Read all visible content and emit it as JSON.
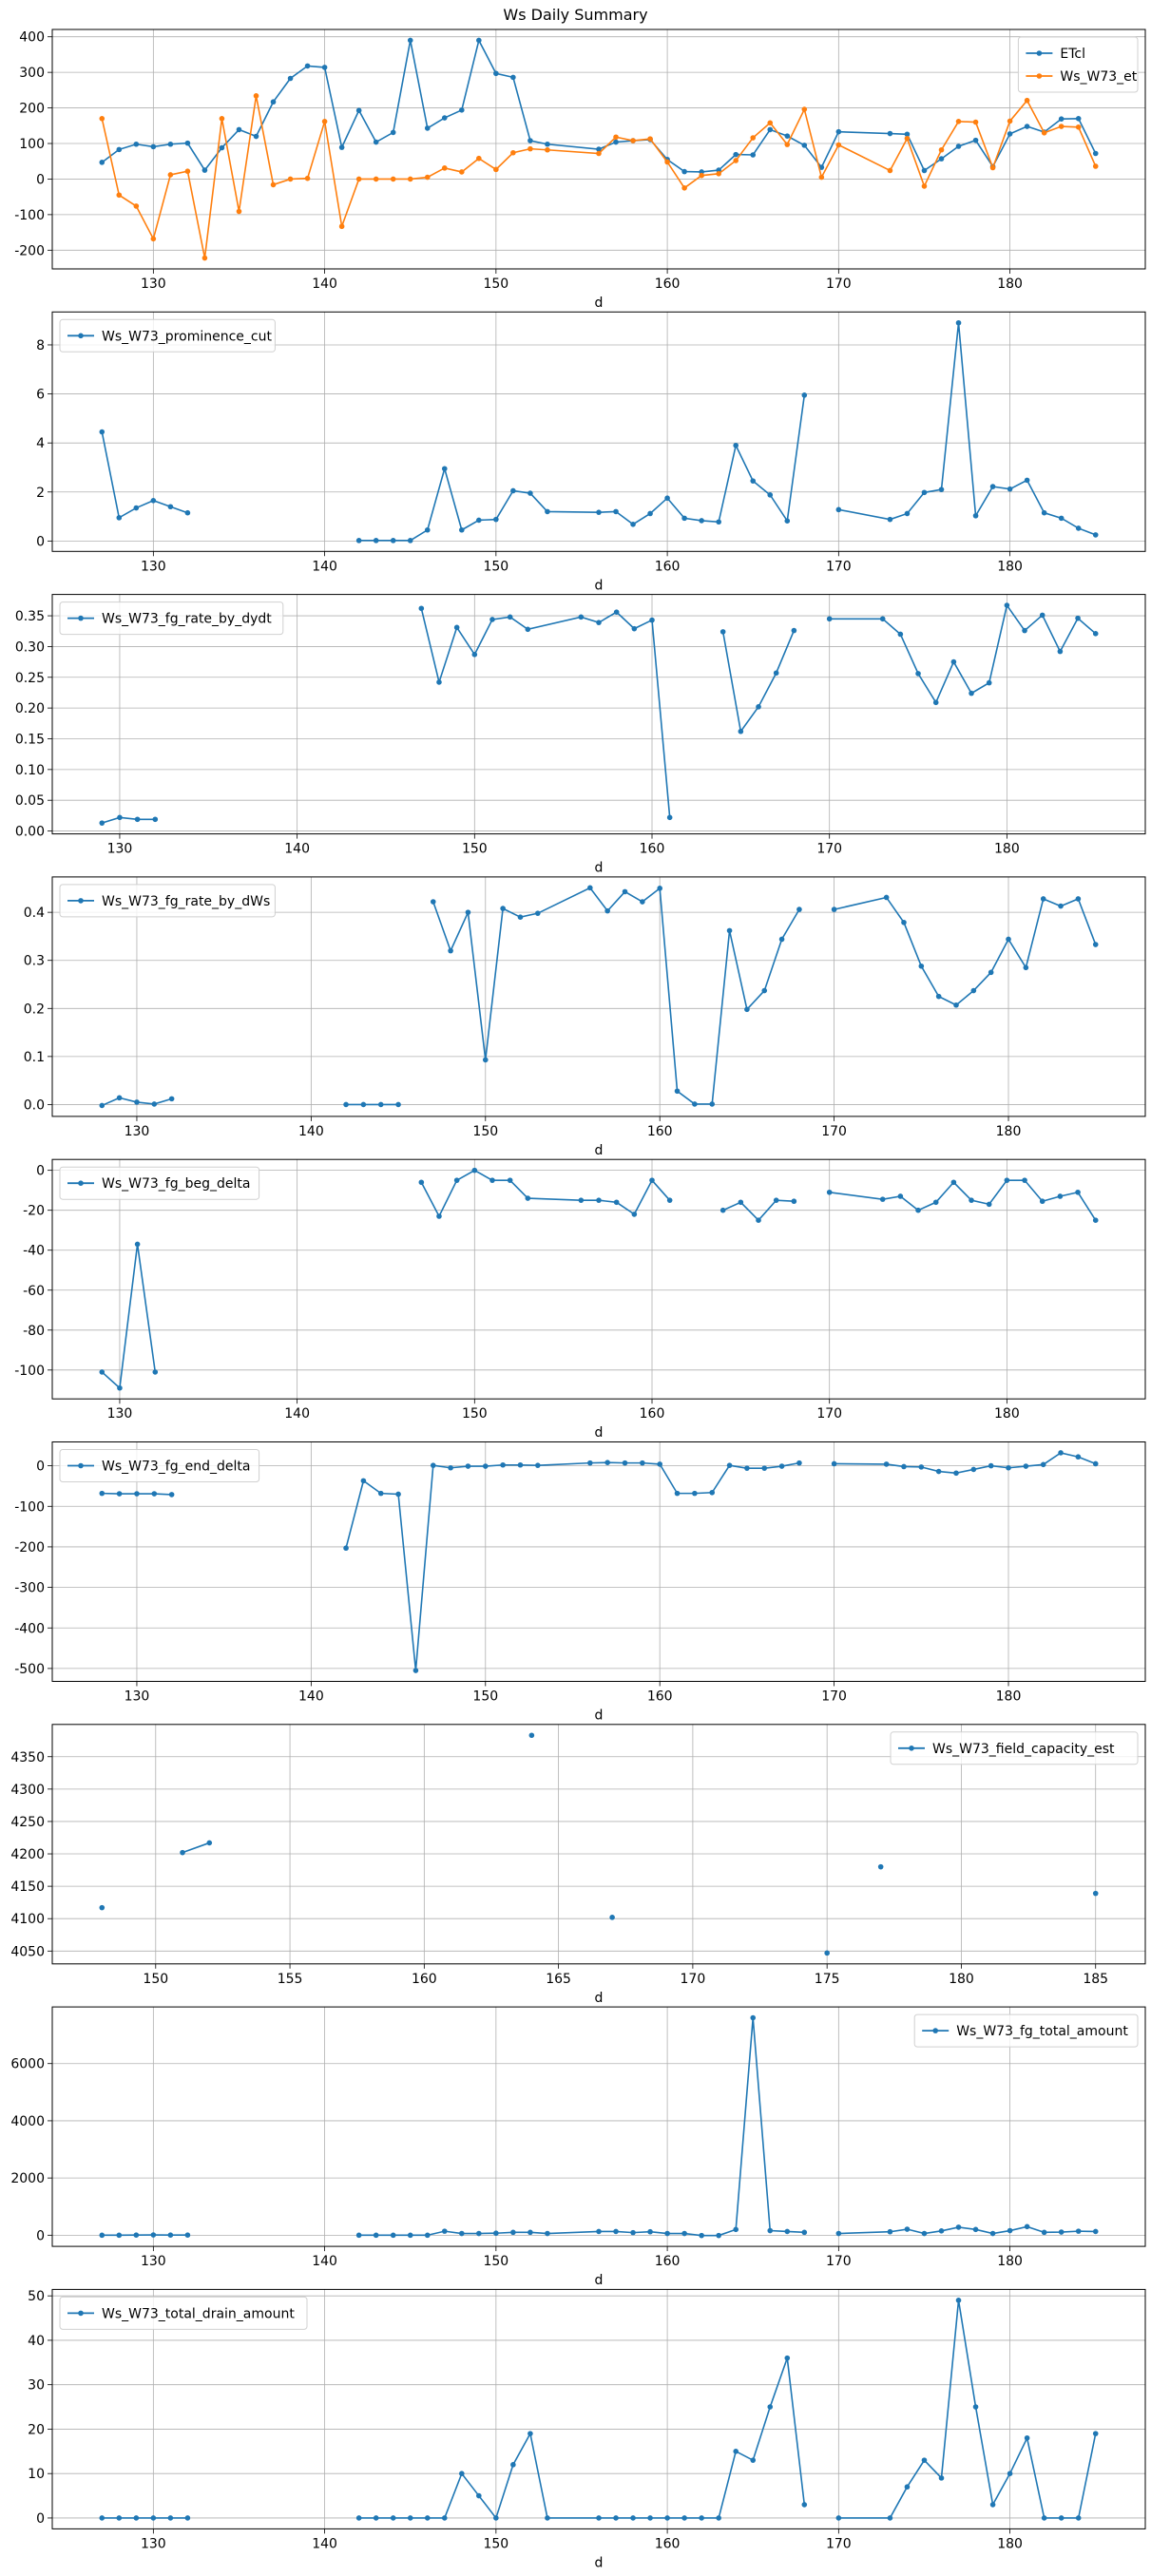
{
  "title": "Ws Daily Summary",
  "chart_data": [
    {
      "type": "line",
      "xlabel": "d",
      "legend": "upper-right",
      "grid": true,
      "xticks": [
        130,
        140,
        150,
        160,
        170,
        180
      ],
      "yticks": [
        -200,
        -100,
        0,
        100,
        200,
        300,
        400
      ],
      "x": [
        127,
        128,
        129,
        130,
        131,
        132,
        133,
        134,
        135,
        136,
        137,
        138,
        139,
        140,
        141,
        142,
        143,
        144,
        145,
        146,
        147,
        148,
        149,
        150,
        151,
        152,
        153,
        156,
        157,
        158,
        159,
        160,
        161,
        162,
        163,
        164,
        165,
        166,
        167,
        168,
        169,
        170,
        173,
        174,
        175,
        176,
        177,
        178,
        179,
        180,
        181,
        182,
        183,
        184,
        185
      ],
      "series": [
        {
          "name": "ETcl",
          "color": "#1f77b4",
          "values": [
            47,
            83,
            98,
            91,
            98,
            101,
            25,
            88,
            139,
            120,
            217,
            283,
            318,
            314,
            89,
            193,
            104,
            131,
            390,
            143,
            172,
            194,
            390,
            297,
            286,
            108,
            98,
            84,
            104,
            108,
            111,
            55,
            21,
            20,
            25,
            69,
            68,
            139,
            121,
            95,
            33,
            133,
            128,
            126,
            24,
            57,
            92,
            109,
            35,
            127,
            148,
            132,
            169,
            170,
            72
          ]
        },
        {
          "name": "Ws_W73_et",
          "color": "#ff7f0e",
          "values": [
            170,
            -45,
            -76,
            -168,
            12,
            22,
            -222,
            170,
            -91,
            234,
            -16,
            0,
            2,
            162,
            -133,
            0,
            0,
            0,
            0,
            5,
            31,
            20,
            58,
            27,
            74,
            85,
            82,
            72,
            118,
            108,
            113,
            48,
            -25,
            10,
            15,
            52,
            116,
            158,
            97,
            196,
            5,
            96,
            24,
            114,
            -20,
            82,
            162,
            160,
            32,
            163,
            221,
            130,
            148,
            146,
            36
          ]
        }
      ]
    },
    {
      "type": "line",
      "xlabel": "d",
      "legend": "upper-left",
      "grid": true,
      "xticks": [
        130,
        140,
        150,
        160,
        170,
        180
      ],
      "yticks": [
        0,
        2,
        4,
        6,
        8
      ],
      "x": [
        127,
        128,
        129,
        130,
        131,
        132,
        133,
        142,
        143,
        144,
        145,
        146,
        147,
        148,
        149,
        150,
        151,
        152,
        153,
        156,
        157,
        158,
        159,
        160,
        161,
        162,
        163,
        164,
        165,
        166,
        167,
        168,
        169,
        170,
        173,
        174,
        175,
        176,
        177,
        178,
        179,
        180,
        181,
        182,
        183,
        184,
        185
      ],
      "series": [
        {
          "name": "Ws_W73_prominence_cut",
          "color": "#1f77b4",
          "values": [
            4.45,
            0.95,
            1.35,
            1.65,
            1.4,
            1.15,
            null,
            0.02,
            0.02,
            0.02,
            0.02,
            0.45,
            2.95,
            0.45,
            0.85,
            0.88,
            2.05,
            1.95,
            1.2,
            1.17,
            1.2,
            0.68,
            1.12,
            1.75,
            0.93,
            0.83,
            0.78,
            3.9,
            2.45,
            1.88,
            0.82,
            5.95,
            null,
            1.28,
            0.88,
            1.12,
            1.98,
            2.1,
            8.9,
            1.03,
            2.22,
            2.12,
            2.48,
            1.15,
            0.93,
            0.52,
            0.25
          ]
        }
      ]
    },
    {
      "type": "line",
      "xlabel": "d",
      "legend": "upper-left",
      "grid": true,
      "xticks": [
        130,
        140,
        150,
        160,
        170,
        180
      ],
      "yticks": [
        0.0,
        0.05,
        0.1,
        0.15,
        0.2,
        0.25,
        0.3,
        0.35
      ],
      "ytick_decimals": 2,
      "x": [
        129,
        130,
        131,
        132,
        133,
        147,
        148,
        149,
        150,
        151,
        152,
        153,
        156,
        157,
        158,
        159,
        160,
        161,
        162,
        164,
        165,
        166,
        167,
        168,
        169,
        170,
        173,
        174,
        175,
        176,
        177,
        178,
        179,
        180,
        181,
        182,
        183,
        184,
        185
      ],
      "series": [
        {
          "name": "Ws_W73_fg_rate_by_dydt",
          "color": "#1f77b4",
          "values": [
            0.013,
            0.022,
            0.019,
            0.019,
            null,
            0.362,
            0.242,
            0.331,
            0.287,
            0.344,
            0.348,
            0.328,
            0.348,
            0.339,
            0.356,
            0.329,
            0.343,
            0.022,
            null,
            0.324,
            0.162,
            0.202,
            0.257,
            0.326,
            null,
            0.345,
            0.345,
            0.32,
            0.256,
            0.209,
            0.275,
            0.224,
            0.241,
            0.367,
            0.326,
            0.351,
            0.292,
            0.346,
            0.321
          ]
        }
      ]
    },
    {
      "type": "line",
      "xlabel": "d",
      "legend": "upper-left",
      "grid": true,
      "xticks": [
        130,
        140,
        150,
        160,
        170,
        180
      ],
      "yticks": [
        0.0,
        0.1,
        0.2,
        0.3,
        0.4
      ],
      "ytick_decimals": 1,
      "x": [
        128,
        129,
        130,
        131,
        132,
        133,
        142,
        143,
        144,
        145,
        146,
        147,
        148,
        149,
        150,
        151,
        152,
        153,
        156,
        157,
        158,
        159,
        160,
        161,
        162,
        163,
        164,
        165,
        166,
        167,
        168,
        169,
        170,
        173,
        174,
        175,
        176,
        177,
        178,
        179,
        180,
        181,
        182,
        183,
        184,
        185
      ],
      "series": [
        {
          "name": "Ws_W73_fg_rate_by_dWs",
          "color": "#1f77b4",
          "values": [
            -0.002,
            0.014,
            0.005,
            0.001,
            0.012,
            null,
            0,
            0,
            0,
            0,
            null,
            0.422,
            0.32,
            0.4,
            0.093,
            0.408,
            0.39,
            0.398,
            0.451,
            0.403,
            0.443,
            0.422,
            0.45,
            0.028,
            0.001,
            0.001,
            0.362,
            0.198,
            0.237,
            0.344,
            0.406,
            null,
            0.406,
            0.431,
            0.379,
            0.288,
            0.225,
            0.207,
            0.237,
            0.275,
            0.344,
            0.285,
            0.428,
            0.413,
            0.428,
            0.333
          ]
        }
      ]
    },
    {
      "type": "line",
      "xlabel": "d",
      "legend": "upper-left",
      "grid": true,
      "xticks": [
        130,
        140,
        150,
        160,
        170,
        180
      ],
      "yticks": [
        -100,
        -80,
        -60,
        -40,
        -20,
        0
      ],
      "x": [
        129,
        130,
        131,
        132,
        133,
        147,
        148,
        149,
        150,
        151,
        152,
        153,
        156,
        157,
        158,
        159,
        160,
        161,
        162,
        164,
        165,
        166,
        167,
        168,
        169,
        170,
        173,
        174,
        175,
        176,
        177,
        178,
        179,
        180,
        181,
        182,
        183,
        184,
        185
      ],
      "series": [
        {
          "name": "Ws_W73_fg_beg_delta",
          "color": "#1f77b4",
          "values": [
            -101,
            -109,
            -37,
            -101,
            null,
            -6,
            -23,
            -5,
            0,
            -5,
            -5,
            -14,
            -15,
            -15,
            -16,
            -22,
            -5,
            -15,
            null,
            -20,
            -16,
            -25,
            -15,
            -15.5,
            null,
            -11,
            -14.5,
            -13,
            -20,
            -16,
            -6,
            -15,
            -17,
            -5,
            -5,
            -15.5,
            -13,
            -11,
            -25
          ]
        }
      ]
    },
    {
      "type": "line",
      "xlabel": "d",
      "legend": "upper-left",
      "grid": true,
      "xticks": [
        130,
        140,
        150,
        160,
        170,
        180
      ],
      "yticks": [
        -500,
        -400,
        -300,
        -200,
        -100,
        0
      ],
      "x": [
        128,
        129,
        130,
        131,
        132,
        133,
        142,
        143,
        144,
        145,
        146,
        147,
        148,
        149,
        150,
        151,
        152,
        153,
        156,
        157,
        158,
        159,
        160,
        161,
        162,
        163,
        164,
        165,
        166,
        167,
        168,
        169,
        170,
        173,
        174,
        175,
        176,
        177,
        178,
        179,
        180,
        181,
        182,
        183,
        184,
        185
      ],
      "series": [
        {
          "name": "Ws_W73_fg_end_delta",
          "color": "#1f77b4",
          "values": [
            -68,
            -69,
            -69,
            -69,
            -71,
            null,
            -203,
            -37,
            -68,
            -70,
            -505,
            1,
            -5,
            -1,
            -1,
            2,
            2,
            1,
            7,
            8,
            7,
            7,
            4,
            -68,
            -68,
            -66,
            1,
            -6,
            -6,
            -1,
            7,
            null,
            5,
            4,
            -2,
            -3,
            -14,
            -18,
            -9,
            0,
            -5,
            -1,
            3,
            32,
            22,
            5
          ]
        }
      ]
    },
    {
      "type": "line",
      "xlabel": "d",
      "legend": "upper-right",
      "grid": true,
      "xticks": [
        150,
        155,
        160,
        165,
        170,
        175,
        180,
        185
      ],
      "yticks": [
        4050,
        4100,
        4150,
        4200,
        4250,
        4300,
        4350
      ],
      "x": [
        148,
        149,
        151,
        152,
        153,
        164,
        165,
        167,
        168,
        175,
        176,
        177,
        178,
        185
      ],
      "series": [
        {
          "name": "Ws_W73_field_capacity_est",
          "color": "#1f77b4",
          "values": [
            4117,
            null,
            4202,
            4217,
            null,
            4383,
            null,
            4102,
            null,
            4047,
            null,
            4180,
            null,
            4139
          ]
        }
      ]
    },
    {
      "type": "line",
      "xlabel": "d",
      "legend": "upper-right",
      "grid": true,
      "xticks": [
        130,
        140,
        150,
        160,
        170,
        180
      ],
      "yticks": [
        0,
        2000,
        4000,
        6000
      ],
      "x": [
        127,
        128,
        129,
        130,
        131,
        132,
        133,
        142,
        143,
        144,
        145,
        146,
        147,
        148,
        149,
        150,
        151,
        152,
        153,
        156,
        157,
        158,
        159,
        160,
        161,
        162,
        163,
        164,
        165,
        166,
        167,
        168,
        169,
        170,
        173,
        174,
        175,
        176,
        177,
        178,
        179,
        180,
        181,
        182,
        183,
        184,
        185
      ],
      "series": [
        {
          "name": "Ws_W73_fg_total_amount",
          "color": "#1f77b4",
          "values": [
            0,
            0,
            5,
            10,
            5,
            5,
            null,
            0,
            0,
            0,
            0,
            0,
            140,
            60,
            60,
            70,
            100,
            100,
            60,
            130,
            130,
            90,
            120,
            60,
            60,
            -10,
            -10,
            200,
            7600,
            160,
            130,
            100,
            null,
            60,
            120,
            210,
            60,
            150,
            280,
            200,
            60,
            160,
            300,
            100,
            110,
            140,
            130
          ]
        }
      ]
    },
    {
      "type": "line",
      "xlabel": "d",
      "legend": "upper-left",
      "grid": true,
      "xticks": [
        130,
        140,
        150,
        160,
        170,
        180
      ],
      "yticks": [
        0,
        10,
        20,
        30,
        40,
        50
      ],
      "x": [
        127,
        128,
        129,
        130,
        131,
        132,
        133,
        142,
        143,
        144,
        145,
        146,
        147,
        148,
        149,
        150,
        151,
        152,
        153,
        156,
        157,
        158,
        159,
        160,
        161,
        162,
        163,
        164,
        165,
        166,
        167,
        168,
        169,
        170,
        173,
        174,
        175,
        176,
        177,
        178,
        179,
        180,
        181,
        182,
        183,
        184,
        185
      ],
      "series": [
        {
          "name": "Ws_W73_total_drain_amount",
          "color": "#1f77b4",
          "values": [
            0,
            0,
            0,
            0,
            0,
            0,
            null,
            0,
            0,
            0,
            0,
            0,
            0,
            10,
            5,
            0,
            12,
            19,
            0,
            0,
            0,
            0,
            0,
            0,
            0,
            0,
            0,
            15,
            13,
            25,
            36,
            3,
            null,
            0,
            0,
            7,
            13,
            9,
            49,
            25,
            3,
            10,
            18,
            0,
            0,
            0,
            19
          ]
        }
      ]
    }
  ]
}
